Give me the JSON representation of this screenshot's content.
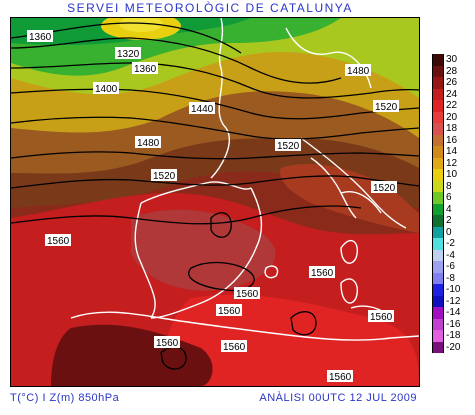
{
  "header": {
    "title": "SERVEI METEOROLÒGIC DE CATALUNYA"
  },
  "footer": {
    "left": "T(°C) I Z(m) 850hPa",
    "right": "ANÀLISI 00UTC 12 JUL 2009"
  },
  "legend": {
    "labels": [
      "30",
      "28",
      "26",
      "24",
      "22",
      "20",
      "18",
      "16",
      "14",
      "12",
      "10",
      "8",
      "6",
      "4",
      "2",
      "0",
      "-2",
      "-4",
      "-6",
      "-8",
      "-10",
      "-12",
      "-14",
      "-16",
      "-18",
      "-20"
    ],
    "colors": [
      "#3c0808",
      "#6a1010",
      "#961616",
      "#c41e1e",
      "#e02424",
      "#e83c3c",
      "#d85050",
      "#c47030",
      "#d08a1c",
      "#e0a818",
      "#e8d010",
      "#c8d81c",
      "#70c828",
      "#10a030",
      "#107030",
      "#10a0a0",
      "#50e0e0",
      "#c0d0f0",
      "#a0a0f0",
      "#8080f0",
      "#2020e0",
      "#1010c0",
      "#a010c0",
      "#c040d0",
      "#e060e0",
      "#7a107a"
    ]
  },
  "map": {
    "contour_labels": [
      "1360",
      "1320",
      "1360",
      "1400",
      "1440",
      "1480",
      "1520",
      "1480",
      "1520",
      "1520",
      "1520",
      "1560",
      "1560",
      "1560",
      "1560",
      "1560",
      "1560",
      "1560",
      "1560"
    ]
  }
}
